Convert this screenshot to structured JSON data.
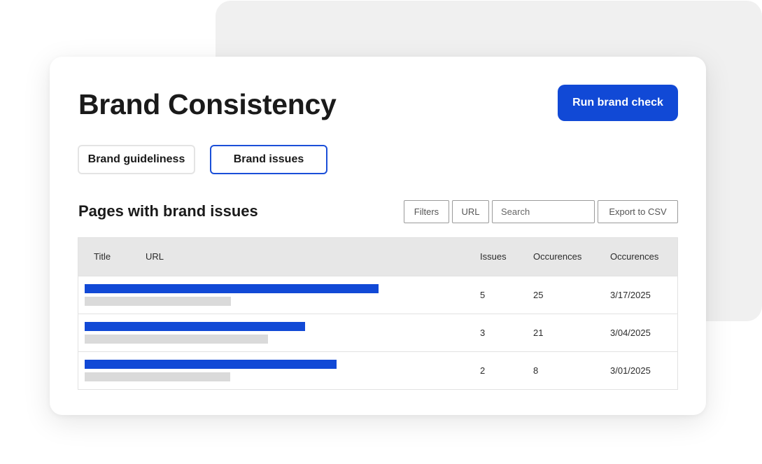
{
  "header": {
    "title": "Brand Consistency",
    "run_button_label": "Run brand check"
  },
  "tabs": [
    {
      "label": "Brand guideliness",
      "active": false
    },
    {
      "label": "Brand issues",
      "active": true
    }
  ],
  "section": {
    "title": "Pages with brand issues"
  },
  "toolbar": {
    "filters_label": "Filters",
    "url_label": "URL",
    "search_placeholder": "Search",
    "export_label": "Export to CSV"
  },
  "table": {
    "columns": [
      "Title",
      "URL",
      "Issues",
      "Occurences",
      "Occurences"
    ],
    "rows": [
      {
        "issues": "5",
        "occurences": "25",
        "date": "3/17/2025"
      },
      {
        "issues": "3",
        "occurences": "21",
        "date": "3/04/2025"
      },
      {
        "issues": "2",
        "occurences": "8",
        "date": "3/01/2025"
      }
    ]
  },
  "colors": {
    "accent": "#1149d6",
    "placeholder_bar": "#dadada",
    "header_bg": "#e7e7e7",
    "back_panel": "#f0f0f0"
  }
}
